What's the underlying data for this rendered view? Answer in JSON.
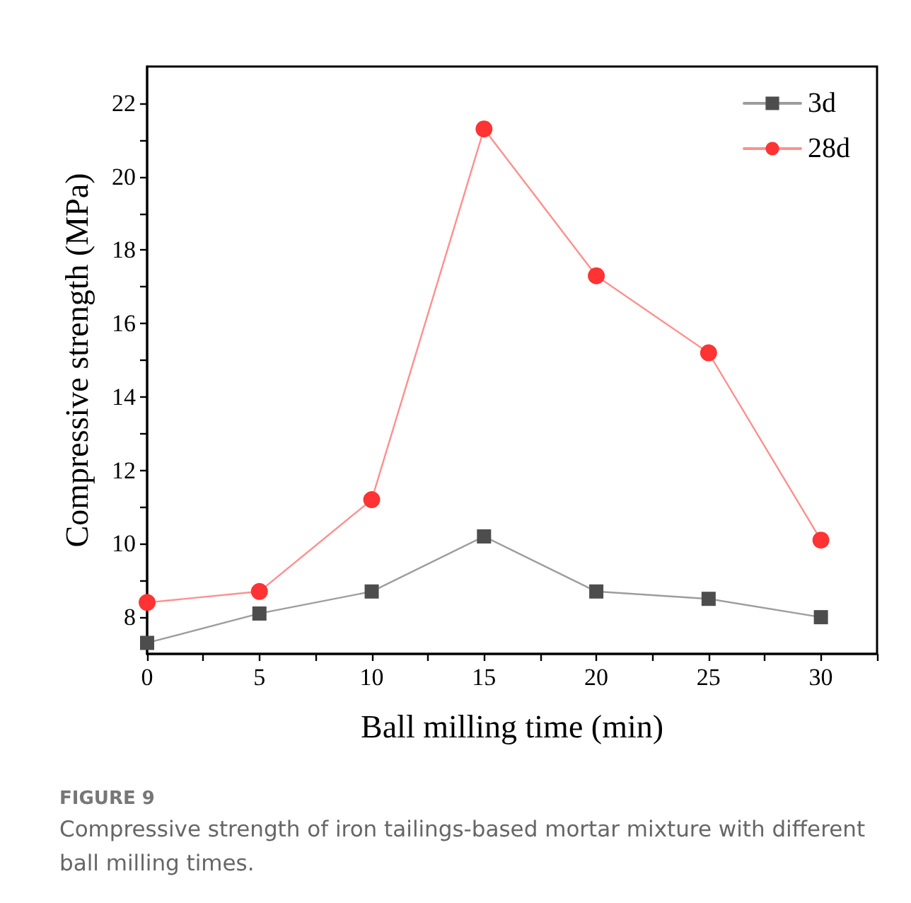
{
  "chart_data": {
    "type": "line",
    "xlabel": "Ball milling time (min)",
    "ylabel": "Compressive strength (MPa)",
    "x": [
      0,
      5,
      10,
      15,
      20,
      25,
      30
    ],
    "series": [
      {
        "name": "3d",
        "color": "#4d4d4d",
        "marker": "square",
        "values": [
          7.3,
          8.1,
          8.7,
          10.2,
          8.7,
          8.5,
          8.0
        ]
      },
      {
        "name": "28d",
        "color": "#ff3333",
        "marker": "circle",
        "values": [
          8.4,
          8.7,
          11.2,
          21.3,
          17.3,
          15.2,
          10.1
        ]
      }
    ],
    "xlim": [
      0,
      32.5
    ],
    "xticks": [
      0,
      {
        "value": 2.5,
        "label": null
      },
      5,
      {
        "value": 7.5,
        "label": null
      },
      10,
      {
        "value": 12.5,
        "label": null
      },
      15,
      {
        "value": 17.5,
        "label": null
      },
      20,
      {
        "value": 22.5,
        "label": null
      },
      25,
      {
        "value": 27.5,
        "label": null
      },
      30,
      {
        "value": 32.5,
        "label": null
      }
    ],
    "ylim": [
      7,
      23
    ],
    "yticks": [
      8,
      {
        "value": 9,
        "label": null
      },
      10,
      {
        "value": 11,
        "label": null
      },
      12,
      {
        "value": 13,
        "label": null
      },
      14,
      {
        "value": 15,
        "label": null
      },
      16,
      {
        "value": 17,
        "label": null
      },
      18,
      {
        "value": 19,
        "label": null
      },
      20,
      {
        "value": 21,
        "label": null
      },
      22
    ],
    "grid": false,
    "legend": "top right",
    "line_style": "solid",
    "annotations": [
      "FIGURE 9",
      "Compressive strength of iron tailings-based mortar mixture with different ball milling times."
    ]
  }
}
